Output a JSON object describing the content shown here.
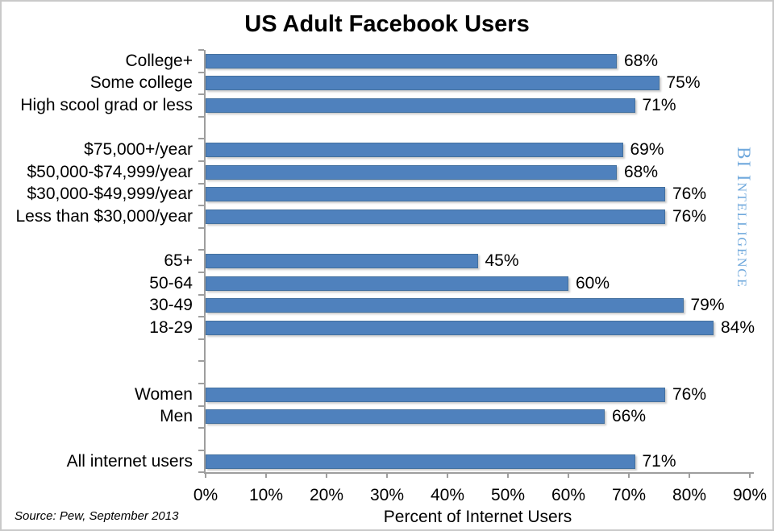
{
  "page": {
    "source_note": "Source: Pew, September 2013",
    "watermark": "BI Intelligence"
  },
  "colors": {
    "bar": "#4f81bd",
    "axis": "#9e9e9e",
    "watermark": "#6fa8dc",
    "text": "#000000"
  },
  "chart_data": {
    "type": "bar",
    "orientation": "horizontal",
    "title": "US Adult Facebook Users",
    "xlabel": "Percent of Internet Users",
    "xlim": [
      0,
      90
    ],
    "grid": false,
    "legend": false,
    "bar_color": "#4f81bd",
    "value_suffix": "%",
    "x_tick_labels": [
      "0%",
      "10%",
      "20%",
      "30%",
      "40%",
      "50%",
      "60%",
      "70%",
      "80%",
      "90%"
    ],
    "categories": [
      "College+",
      "Some college",
      "High scool grad or less",
      "$75,000+/year",
      "$50,000-$74,999/year",
      "$30,000-$49,999/year",
      "Less than $30,000/year",
      "65+",
      "50-64",
      "30-49",
      "18-29",
      "Women",
      "Men",
      "All internet users"
    ],
    "values": [
      68,
      75,
      71,
      69,
      68,
      76,
      76,
      45,
      60,
      79,
      84,
      76,
      66,
      71
    ],
    "row_slots": [
      0,
      1,
      2,
      4,
      5,
      6,
      7,
      9,
      10,
      11,
      12,
      15,
      16,
      18
    ],
    "total_rows": 19
  }
}
